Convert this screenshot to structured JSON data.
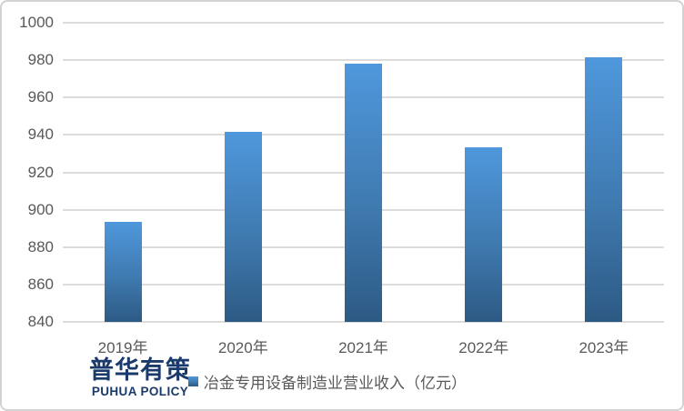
{
  "chart_data": {
    "type": "bar",
    "title": "",
    "categories": [
      "2019年",
      "2020年",
      "2021年",
      "2022年",
      "2023年"
    ],
    "values": [
      893.6,
      941.4,
      977.9,
      933.6,
      981.3
    ],
    "series_name": "冶金专用设备制造业营业收入（亿元）",
    "xlabel": "",
    "ylabel": "",
    "ylim": [
      840,
      1000
    ],
    "yticks": [
      840,
      860,
      880,
      900,
      920,
      940,
      960,
      980,
      1000
    ],
    "grid": true,
    "legend_position": "bottom",
    "bar_gradient": [
      "#4f98dc",
      "#3f7ab0",
      "#2d5a84"
    ]
  },
  "legend": {
    "marker_icon": "square-icon",
    "label": "冶金专用设备制造业营业收入（亿元）"
  },
  "footer": {
    "logo_cn": "普华有策",
    "logo_en": "PUHUA POLICY"
  },
  "colors": {
    "gridline": "#dcdcdc",
    "axis_text": "#595959",
    "frame_border": "#d2d2d2",
    "logo_navy": "#1a3a6c"
  }
}
